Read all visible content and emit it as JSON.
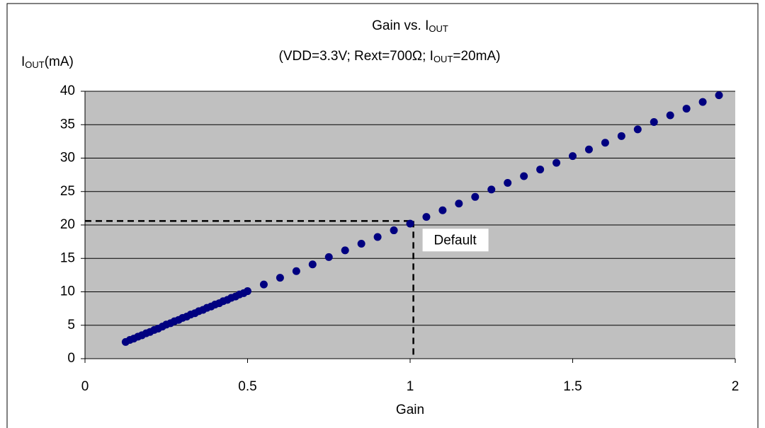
{
  "chart_data": {
    "type": "scatter",
    "title": [
      "Gain vs. I",
      "OUT"
    ],
    "subtitle": [
      "(VDD=3.3V; Rext=700Ω; I",
      "OUT",
      "=20mA)"
    ],
    "x_label": "Gain",
    "y_label": [
      "I",
      "OUT",
      "(mA)"
    ],
    "xlim": [
      0,
      2
    ],
    "xticks": [
      0,
      0.5,
      1,
      1.5,
      2
    ],
    "ylim": [
      0,
      40
    ],
    "yticks": [
      0,
      5,
      10,
      15,
      20,
      25,
      30,
      35,
      40
    ],
    "grid": true,
    "plot_background": "#c0c0c0",
    "series": [
      {
        "color": "#000080",
        "x": [
          0.125,
          0.138,
          0.15,
          0.163,
          0.175,
          0.188,
          0.2,
          0.213,
          0.225,
          0.238,
          0.25,
          0.263,
          0.275,
          0.288,
          0.3,
          0.313,
          0.325,
          0.338,
          0.35,
          0.363,
          0.375,
          0.388,
          0.4,
          0.413,
          0.425,
          0.438,
          0.45,
          0.463,
          0.475,
          0.488,
          0.5,
          0.55,
          0.6,
          0.65,
          0.7,
          0.75,
          0.8,
          0.85,
          0.9,
          0.95,
          1.0,
          1.05,
          1.1,
          1.15,
          1.2,
          1.25,
          1.3,
          1.35,
          1.4,
          1.45,
          1.5,
          1.55,
          1.6,
          1.65,
          1.7,
          1.75,
          1.8,
          1.85,
          1.9,
          1.95
        ],
        "values": [
          2.5,
          2.8,
          3.0,
          3.3,
          3.5,
          3.8,
          4.0,
          4.3,
          4.5,
          4.8,
          5.1,
          5.3,
          5.6,
          5.8,
          6.1,
          6.3,
          6.6,
          6.8,
          7.1,
          7.3,
          7.6,
          7.8,
          8.1,
          8.3,
          8.6,
          8.8,
          9.1,
          9.3,
          9.6,
          9.8,
          10.1,
          11.1,
          12.1,
          13.1,
          14.1,
          15.2,
          16.2,
          17.2,
          18.2,
          19.2,
          20.2,
          21.2,
          22.2,
          23.2,
          24.2,
          25.3,
          26.3,
          27.3,
          28.3,
          29.3,
          30.3,
          31.3,
          32.3,
          33.3,
          34.3,
          35.4,
          36.4,
          37.4,
          38.4,
          39.4
        ]
      }
    ],
    "annotation": {
      "text": "Default",
      "x": 1.01,
      "y": 20.6
    }
  }
}
